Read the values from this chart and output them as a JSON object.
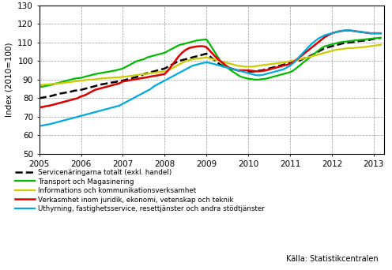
{
  "ylabel": "Index (2010=100)",
  "source": "Källa: Statistikcentralen",
  "ylim": [
    50,
    130
  ],
  "yticks": [
    50,
    60,
    70,
    80,
    90,
    100,
    110,
    120,
    130
  ],
  "xlim": [
    2005.0,
    2013.25
  ],
  "xtick_labels": [
    "2005",
    "2006",
    "2007",
    "2008",
    "2009",
    "2010",
    "2011",
    "2012",
    "2013"
  ],
  "xtick_positions": [
    2005,
    2006,
    2007,
    2008,
    2009,
    2010,
    2011,
    2012,
    2013
  ],
  "legend_entries": [
    "Servicenäringarna totalt (exkl. handel)",
    "Transport och Magasinering",
    "Informations och kommunikationsverksamhet",
    "Verkasmhet inom juridik, ekonomi, vetenskap och teknik",
    "Uthyrning, fastighetsservice, resettjänster och andra stödtjänster"
  ],
  "series_colors": [
    "#000000",
    "#00bb00",
    "#cccc00",
    "#dd0000",
    "#00aadd"
  ],
  "series_styles": [
    "--",
    "-",
    "-",
    "-",
    "-"
  ],
  "series_widths": [
    1.8,
    1.6,
    1.6,
    1.8,
    1.6
  ],
  "x": [
    2005.0,
    2005.083,
    2005.167,
    2005.25,
    2005.333,
    2005.417,
    2005.5,
    2005.583,
    2005.667,
    2005.75,
    2005.833,
    2005.917,
    2006.0,
    2006.083,
    2006.167,
    2006.25,
    2006.333,
    2006.417,
    2006.5,
    2006.583,
    2006.667,
    2006.75,
    2006.833,
    2006.917,
    2007.0,
    2007.083,
    2007.167,
    2007.25,
    2007.333,
    2007.417,
    2007.5,
    2007.583,
    2007.667,
    2007.75,
    2007.833,
    2007.917,
    2008.0,
    2008.083,
    2008.167,
    2008.25,
    2008.333,
    2008.417,
    2008.5,
    2008.583,
    2008.667,
    2008.75,
    2008.833,
    2008.917,
    2009.0,
    2009.083,
    2009.167,
    2009.25,
    2009.333,
    2009.417,
    2009.5,
    2009.583,
    2009.667,
    2009.75,
    2009.833,
    2009.917,
    2010.0,
    2010.083,
    2010.167,
    2010.25,
    2010.333,
    2010.417,
    2010.5,
    2010.583,
    2010.667,
    2010.75,
    2010.833,
    2010.917,
    2011.0,
    2011.083,
    2011.167,
    2011.25,
    2011.333,
    2011.417,
    2011.5,
    2011.583,
    2011.667,
    2011.75,
    2011.833,
    2011.917,
    2012.0,
    2012.083,
    2012.167,
    2012.25,
    2012.333,
    2012.417,
    2012.5,
    2012.583,
    2012.667,
    2012.75,
    2012.833,
    2012.917,
    2013.0,
    2013.083,
    2013.167
  ],
  "y_total": [
    80.0,
    80.3,
    80.7,
    81.0,
    81.5,
    82.0,
    82.5,
    82.8,
    83.2,
    83.5,
    84.0,
    84.3,
    84.5,
    85.0,
    85.5,
    86.0,
    86.5,
    87.0,
    87.5,
    87.8,
    88.2,
    88.5,
    88.8,
    89.2,
    89.5,
    90.0,
    90.5,
    91.0,
    91.5,
    92.0,
    93.0,
    93.5,
    94.0,
    94.5,
    95.0,
    95.5,
    96.0,
    97.0,
    98.0,
    99.0,
    100.0,
    100.5,
    101.0,
    101.5,
    102.0,
    102.5,
    103.0,
    103.5,
    104.0,
    102.5,
    101.0,
    99.5,
    98.0,
    97.0,
    96.5,
    96.0,
    95.5,
    95.0,
    95.0,
    94.8,
    94.5,
    94.3,
    94.5,
    94.8,
    95.0,
    95.5,
    96.0,
    96.5,
    97.0,
    97.5,
    98.0,
    98.5,
    99.0,
    99.5,
    100.0,
    100.5,
    101.5,
    102.0,
    103.0,
    104.0,
    105.0,
    106.0,
    107.0,
    107.5,
    108.0,
    108.5,
    109.0,
    109.5,
    109.8,
    110.0,
    110.2,
    110.5,
    110.8,
    111.0,
    111.2,
    111.5,
    112.0,
    112.2,
    112.5
  ],
  "y_transport": [
    86.0,
    86.3,
    86.6,
    87.0,
    87.5,
    88.0,
    88.5,
    89.0,
    89.5,
    90.0,
    90.5,
    90.8,
    91.0,
    91.5,
    92.0,
    92.5,
    93.0,
    93.3,
    93.7,
    94.0,
    94.3,
    94.7,
    95.0,
    95.5,
    96.0,
    97.0,
    98.0,
    99.0,
    100.0,
    100.5,
    101.0,
    102.0,
    102.5,
    103.0,
    103.5,
    104.0,
    104.5,
    105.5,
    106.5,
    107.5,
    108.5,
    109.0,
    109.5,
    110.0,
    110.5,
    111.0,
    111.3,
    111.5,
    111.7,
    109.0,
    106.0,
    103.0,
    100.0,
    98.0,
    96.5,
    95.0,
    93.8,
    92.5,
    91.5,
    91.0,
    90.5,
    90.3,
    90.0,
    90.0,
    90.3,
    90.5,
    91.0,
    91.5,
    92.0,
    92.5,
    93.0,
    93.5,
    94.0,
    95.0,
    96.5,
    98.0,
    99.5,
    101.0,
    102.5,
    104.0,
    105.5,
    107.0,
    108.0,
    108.5,
    109.0,
    109.5,
    110.0,
    110.3,
    110.5,
    110.8,
    111.0,
    111.2,
    111.4,
    111.6,
    111.8,
    112.0,
    112.2,
    112.4,
    112.6
  ],
  "y_ict": [
    87.0,
    87.2,
    87.4,
    87.5,
    87.8,
    88.0,
    88.0,
    88.2,
    88.5,
    88.7,
    89.0,
    89.2,
    89.5,
    89.7,
    90.0,
    90.0,
    90.2,
    90.5,
    90.7,
    90.8,
    91.0,
    91.0,
    91.2,
    91.3,
    91.5,
    91.7,
    92.0,
    92.2,
    92.5,
    92.8,
    93.0,
    93.2,
    93.5,
    93.7,
    94.0,
    94.2,
    94.5,
    95.0,
    96.0,
    97.0,
    98.0,
    99.0,
    100.0,
    100.5,
    101.0,
    101.3,
    101.5,
    101.7,
    102.0,
    101.5,
    101.0,
    100.5,
    100.0,
    99.5,
    99.0,
    98.5,
    98.0,
    97.5,
    97.3,
    97.0,
    97.0,
    97.0,
    97.2,
    97.5,
    97.8,
    98.0,
    98.3,
    98.5,
    98.8,
    99.0,
    99.2,
    99.5,
    100.0,
    100.3,
    100.5,
    101.0,
    101.5,
    102.0,
    102.5,
    103.0,
    103.5,
    104.0,
    104.5,
    105.0,
    105.5,
    106.0,
    106.3,
    106.5,
    106.8,
    107.0,
    107.0,
    107.2,
    107.4,
    107.5,
    107.7,
    108.0,
    108.3,
    108.5,
    108.7
  ],
  "y_juridik": [
    75.0,
    75.3,
    75.7,
    76.0,
    76.5,
    77.0,
    77.5,
    78.0,
    78.5,
    79.0,
    79.5,
    80.0,
    81.0,
    81.5,
    82.5,
    83.5,
    84.5,
    85.0,
    85.5,
    86.0,
    86.5,
    87.0,
    87.5,
    88.0,
    89.0,
    89.3,
    89.7,
    90.0,
    90.3,
    90.7,
    91.0,
    91.3,
    91.7,
    92.0,
    92.3,
    92.7,
    93.0,
    95.0,
    97.5,
    100.0,
    102.5,
    104.5,
    106.0,
    107.0,
    107.5,
    107.8,
    108.0,
    108.0,
    107.5,
    105.5,
    103.5,
    101.5,
    100.0,
    98.5,
    97.0,
    96.0,
    95.5,
    95.0,
    95.0,
    95.0,
    95.0,
    94.8,
    94.5,
    94.5,
    94.7,
    95.0,
    95.5,
    96.0,
    96.5,
    97.0,
    97.5,
    98.0,
    98.5,
    99.5,
    101.0,
    102.5,
    104.0,
    105.5,
    107.0,
    108.5,
    110.0,
    111.5,
    113.0,
    114.0,
    115.0,
    115.5,
    116.0,
    116.3,
    116.5,
    116.5,
    116.3,
    116.0,
    115.8,
    115.5,
    115.3,
    115.0,
    115.0,
    115.0,
    115.0
  ],
  "y_uthyrning": [
    65.0,
    65.3,
    65.7,
    66.0,
    66.5,
    67.0,
    67.5,
    68.0,
    68.5,
    69.0,
    69.5,
    70.0,
    70.5,
    71.0,
    71.5,
    72.0,
    72.5,
    73.0,
    73.5,
    74.0,
    74.5,
    75.0,
    75.5,
    76.0,
    77.0,
    78.0,
    79.0,
    80.0,
    81.0,
    82.0,
    83.0,
    84.0,
    85.0,
    86.5,
    87.5,
    88.5,
    89.5,
    90.5,
    91.5,
    92.5,
    93.5,
    94.5,
    95.5,
    96.5,
    97.5,
    98.0,
    98.5,
    99.0,
    99.3,
    99.0,
    98.5,
    98.0,
    97.5,
    97.0,
    96.5,
    96.0,
    95.5,
    95.0,
    94.5,
    94.0,
    93.5,
    93.0,
    92.5,
    92.3,
    92.5,
    93.0,
    93.5,
    94.0,
    94.5,
    95.0,
    95.5,
    96.5,
    97.5,
    99.0,
    101.0,
    103.0,
    105.0,
    107.0,
    109.0,
    110.5,
    112.0,
    113.0,
    114.0,
    114.5,
    115.0,
    115.5,
    116.0,
    116.3,
    116.5,
    116.5,
    116.3,
    116.0,
    115.8,
    115.5,
    115.3,
    115.0,
    115.0,
    115.0,
    115.0
  ]
}
